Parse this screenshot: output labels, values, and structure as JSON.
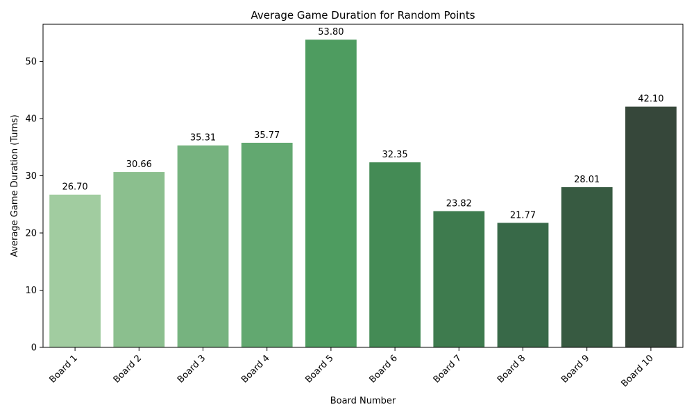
{
  "chart_data": {
    "type": "bar",
    "title": "Average Game Duration for Random Points",
    "xlabel": "Board Number",
    "ylabel": "Average Game Duration (Turns)",
    "categories": [
      "Board 1",
      "Board 2",
      "Board 3",
      "Board 4",
      "Board 5",
      "Board 6",
      "Board 7",
      "Board 8",
      "Board 9",
      "Board 10"
    ],
    "values": [
      26.7,
      30.66,
      35.31,
      35.77,
      53.8,
      32.35,
      23.82,
      21.77,
      28.01,
      42.1
    ],
    "value_labels": [
      "26.70",
      "30.66",
      "35.31",
      "35.77",
      "53.80",
      "32.35",
      "23.82",
      "21.77",
      "28.01",
      "42.10"
    ],
    "colors": [
      "#a1cca0",
      "#8bbf8e",
      "#76b37f",
      "#62a870",
      "#4e9c60",
      "#448b55",
      "#3e7b4e",
      "#386948",
      "#375a41",
      "#36473a"
    ],
    "ylim": [
      0,
      56.49
    ],
    "yticks": [
      0,
      10,
      20,
      30,
      40,
      50
    ],
    "grid": false,
    "legend": "none"
  }
}
